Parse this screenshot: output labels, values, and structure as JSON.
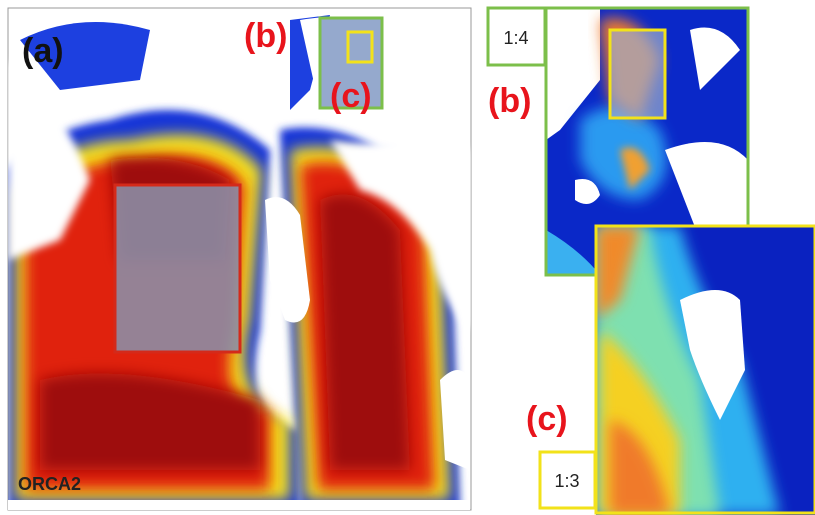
{
  "panel_a": {
    "label": "(a)",
    "inset_b_label": "(b)",
    "inset_c_label": "(c)",
    "name": "ORCA2"
  },
  "panel_b": {
    "label": "(b)",
    "ratio": "1:4"
  },
  "panel_c": {
    "label": "(c)",
    "ratio": "1:3"
  }
}
